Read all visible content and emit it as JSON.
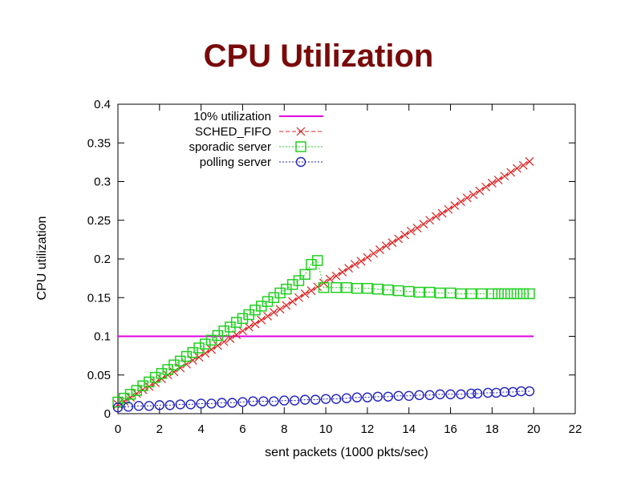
{
  "title": "CPU Utilization",
  "chart_data": {
    "type": "line",
    "xlabel": "sent packets (1000 pkts/sec)",
    "ylabel": "CPU utilization",
    "xlim": [
      0,
      22
    ],
    "ylim": [
      0,
      0.4
    ],
    "x_ticks": [
      0,
      2,
      4,
      6,
      8,
      10,
      12,
      14,
      16,
      18,
      20,
      22
    ],
    "y_ticks": [
      0,
      0.05,
      0.1,
      0.15,
      0.2,
      0.25,
      0.3,
      0.35,
      0.4
    ],
    "grid": false,
    "legend_position": "top-left",
    "series": [
      {
        "name": "10% utilization",
        "color": "#e000e0",
        "style": "solid",
        "marker": "none",
        "points": [
          [
            0,
            0.1
          ],
          [
            20,
            0.1
          ]
        ]
      },
      {
        "name": "SCHED_FIFO",
        "color": "#e02020",
        "style": "dashed",
        "marker": "cross",
        "points": [
          [
            0,
            0.012
          ],
          [
            0.3,
            0.016
          ],
          [
            0.6,
            0.021
          ],
          [
            0.9,
            0.026
          ],
          [
            1.2,
            0.031
          ],
          [
            1.5,
            0.035
          ],
          [
            1.8,
            0.04
          ],
          [
            2.1,
            0.045
          ],
          [
            2.4,
            0.05
          ],
          [
            2.7,
            0.054
          ],
          [
            3,
            0.059
          ],
          [
            3.3,
            0.064
          ],
          [
            3.6,
            0.069
          ],
          [
            3.9,
            0.073
          ],
          [
            4.2,
            0.078
          ],
          [
            4.5,
            0.083
          ],
          [
            4.8,
            0.088
          ],
          [
            5.1,
            0.093
          ],
          [
            5.4,
            0.097
          ],
          [
            5.7,
            0.102
          ],
          [
            6,
            0.107
          ],
          [
            6.3,
            0.112
          ],
          [
            6.6,
            0.116
          ],
          [
            6.9,
            0.121
          ],
          [
            7.2,
            0.126
          ],
          [
            7.5,
            0.131
          ],
          [
            7.8,
            0.135
          ],
          [
            8.1,
            0.14
          ],
          [
            8.4,
            0.145
          ],
          [
            8.7,
            0.15
          ],
          [
            9,
            0.155
          ],
          [
            9.3,
            0.159
          ],
          [
            9.6,
            0.164
          ],
          [
            9.9,
            0.169
          ],
          [
            10.2,
            0.174
          ],
          [
            10.5,
            0.178
          ],
          [
            10.8,
            0.183
          ],
          [
            11.1,
            0.188
          ],
          [
            11.4,
            0.193
          ],
          [
            11.7,
            0.197
          ],
          [
            12,
            0.202
          ],
          [
            12.3,
            0.207
          ],
          [
            12.6,
            0.212
          ],
          [
            12.9,
            0.217
          ],
          [
            13.2,
            0.221
          ],
          [
            13.5,
            0.226
          ],
          [
            13.8,
            0.231
          ],
          [
            14.1,
            0.236
          ],
          [
            14.4,
            0.24
          ],
          [
            14.7,
            0.245
          ],
          [
            15,
            0.25
          ],
          [
            15.3,
            0.255
          ],
          [
            15.6,
            0.259
          ],
          [
            15.9,
            0.264
          ],
          [
            16.2,
            0.269
          ],
          [
            16.5,
            0.274
          ],
          [
            16.8,
            0.279
          ],
          [
            17.1,
            0.283
          ],
          [
            17.4,
            0.288
          ],
          [
            17.7,
            0.293
          ],
          [
            18,
            0.298
          ],
          [
            18.3,
            0.302
          ],
          [
            18.6,
            0.307
          ],
          [
            18.9,
            0.312
          ],
          [
            19.2,
            0.317
          ],
          [
            19.5,
            0.321
          ],
          [
            19.8,
            0.326
          ]
        ]
      },
      {
        "name": "sporadic server",
        "color": "#20d020",
        "style": "dotted",
        "marker": "square",
        "points": [
          [
            0,
            0.015
          ],
          [
            0.3,
            0.02
          ],
          [
            0.6,
            0.025
          ],
          [
            0.9,
            0.03
          ],
          [
            1.2,
            0.036
          ],
          [
            1.5,
            0.041
          ],
          [
            1.8,
            0.047
          ],
          [
            2.1,
            0.052
          ],
          [
            2.4,
            0.057
          ],
          [
            2.7,
            0.063
          ],
          [
            3,
            0.068
          ],
          [
            3.3,
            0.074
          ],
          [
            3.6,
            0.079
          ],
          [
            3.9,
            0.085
          ],
          [
            4.2,
            0.09
          ],
          [
            4.5,
            0.095
          ],
          [
            4.8,
            0.101
          ],
          [
            5.1,
            0.107
          ],
          [
            5.4,
            0.112
          ],
          [
            5.7,
            0.118
          ],
          [
            6,
            0.123
          ],
          [
            6.3,
            0.128
          ],
          [
            6.6,
            0.134
          ],
          [
            6.9,
            0.139
          ],
          [
            7.2,
            0.145
          ],
          [
            7.5,
            0.15
          ],
          [
            7.8,
            0.156
          ],
          [
            8.1,
            0.161
          ],
          [
            8.4,
            0.167
          ],
          [
            8.7,
            0.172
          ],
          [
            9,
            0.18
          ],
          [
            9.3,
            0.193
          ],
          [
            9.6,
            0.198
          ],
          [
            9.9,
            0.163
          ],
          [
            10.5,
            0.163
          ],
          [
            11,
            0.163
          ],
          [
            11.5,
            0.162
          ],
          [
            12,
            0.162
          ],
          [
            12.5,
            0.161
          ],
          [
            13,
            0.16
          ],
          [
            13.5,
            0.159
          ],
          [
            14,
            0.158
          ],
          [
            14.5,
            0.157
          ],
          [
            15,
            0.157
          ],
          [
            15.5,
            0.156
          ],
          [
            16,
            0.156
          ],
          [
            16.5,
            0.155
          ],
          [
            17,
            0.155
          ],
          [
            17.5,
            0.155
          ],
          [
            18,
            0.155
          ],
          [
            18.3,
            0.155
          ],
          [
            18.6,
            0.155
          ],
          [
            18.9,
            0.155
          ],
          [
            19.2,
            0.155
          ],
          [
            19.5,
            0.155
          ],
          [
            19.8,
            0.155
          ]
        ]
      },
      {
        "name": "polling server",
        "color": "#2020c0",
        "style": "dotted",
        "marker": "circle",
        "points": [
          [
            0,
            0.008
          ],
          [
            0.5,
            0.009
          ],
          [
            1,
            0.01
          ],
          [
            1.5,
            0.01
          ],
          [
            2,
            0.011
          ],
          [
            2.5,
            0.011
          ],
          [
            3,
            0.012
          ],
          [
            3.5,
            0.012
          ],
          [
            4,
            0.013
          ],
          [
            4.5,
            0.013
          ],
          [
            5,
            0.014
          ],
          [
            5.5,
            0.014
          ],
          [
            6,
            0.015
          ],
          [
            6.5,
            0.016
          ],
          [
            7,
            0.016
          ],
          [
            7.5,
            0.016
          ],
          [
            8,
            0.017
          ],
          [
            8.5,
            0.017
          ],
          [
            9,
            0.018
          ],
          [
            9.5,
            0.018
          ],
          [
            10,
            0.019
          ],
          [
            10.5,
            0.019
          ],
          [
            11,
            0.02
          ],
          [
            11.5,
            0.021
          ],
          [
            12,
            0.021
          ],
          [
            12.5,
            0.022
          ],
          [
            13,
            0.022
          ],
          [
            13.5,
            0.023
          ],
          [
            14,
            0.023
          ],
          [
            14.5,
            0.024
          ],
          [
            15,
            0.024
          ],
          [
            15.5,
            0.025
          ],
          [
            16,
            0.025
          ],
          [
            16.5,
            0.025
          ],
          [
            17,
            0.026
          ],
          [
            17.3,
            0.026
          ],
          [
            17.8,
            0.027
          ],
          [
            18.2,
            0.027
          ],
          [
            18.6,
            0.028
          ],
          [
            19,
            0.028
          ],
          [
            19.4,
            0.029
          ],
          [
            19.8,
            0.029
          ]
        ]
      }
    ]
  }
}
